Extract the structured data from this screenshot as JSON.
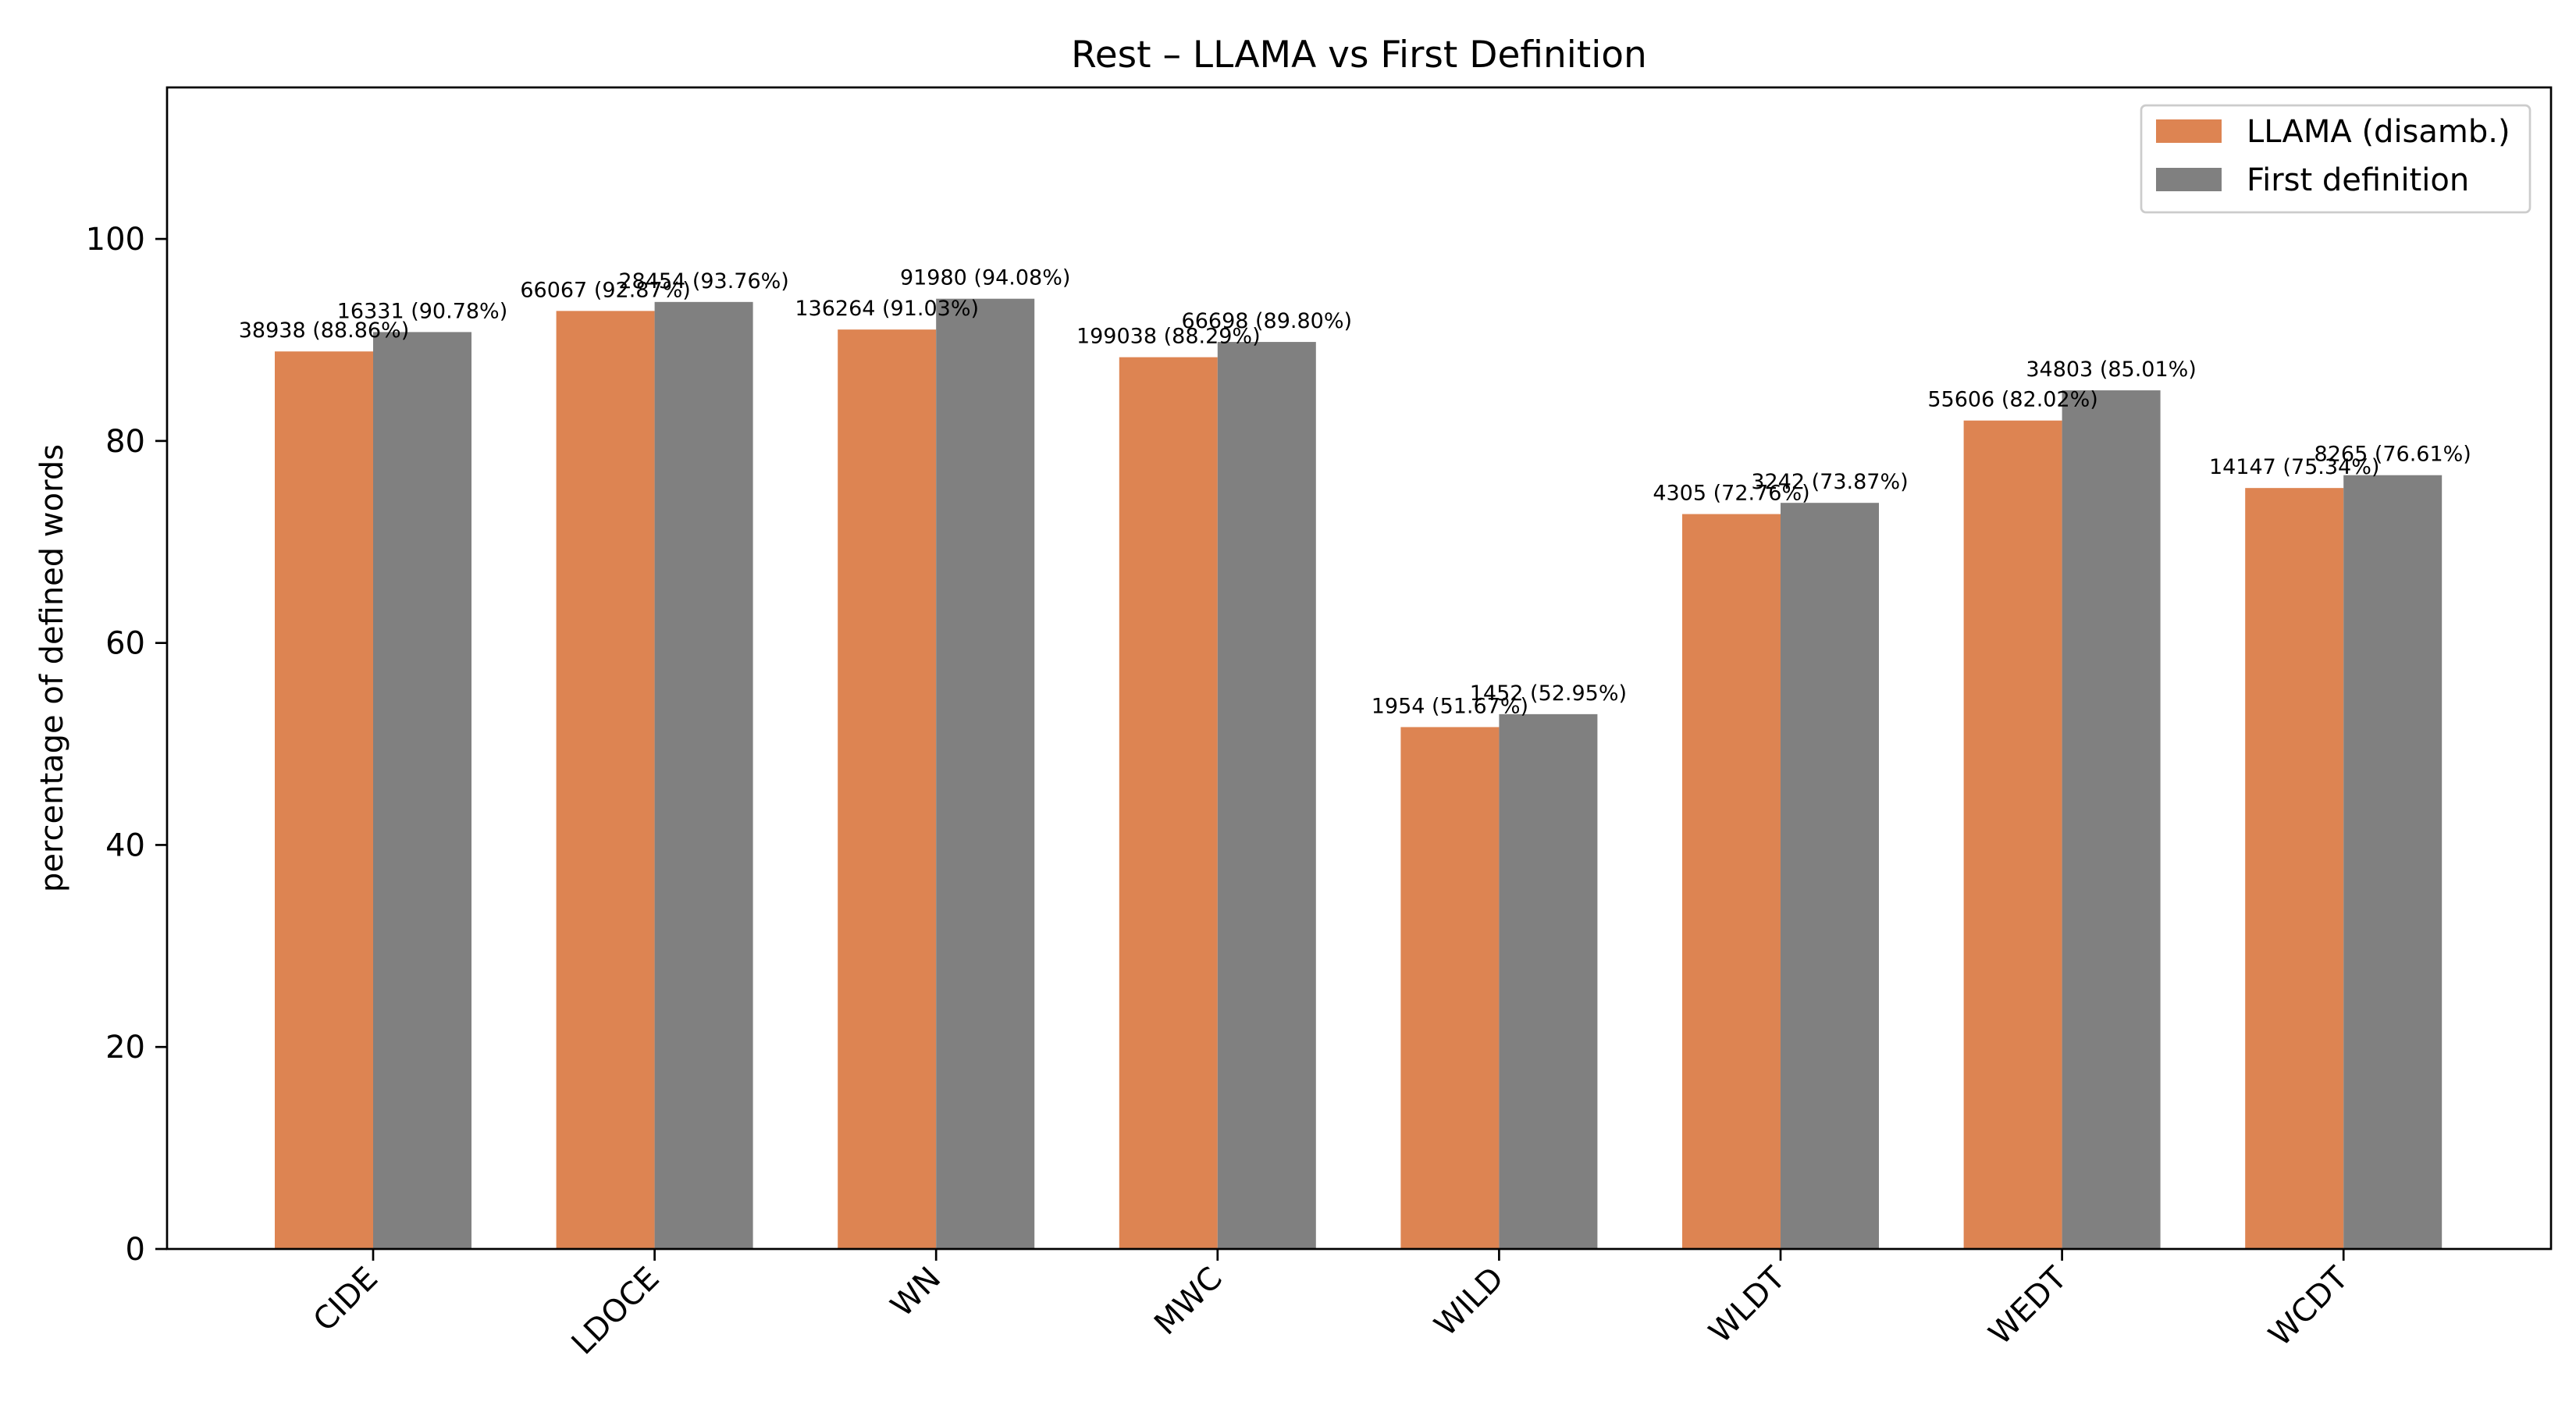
{
  "chart_data": {
    "type": "bar",
    "title": "Rest – LLAMA vs First Definition",
    "xlabel": "",
    "ylabel": "percentage of defined words",
    "ylim": [
      0,
      115
    ],
    "yticks": [
      "0",
      "20",
      "40",
      "60",
      "80",
      "100"
    ],
    "categories": [
      "CIDE",
      "LDOCE",
      "WN",
      "MWC",
      "WILD",
      "WLDT",
      "WEDT",
      "WCDT"
    ],
    "series": [
      {
        "name": "LLAMA (disamb.)",
        "color": "#dd8452",
        "values": [
          88.86,
          92.87,
          91.03,
          88.29,
          51.67,
          72.76,
          82.02,
          75.34
        ],
        "labels": [
          "38938 (88.86%)",
          "66067 (92.87%)",
          "136264 (91.03%)",
          "199038 (88.29%)",
          "1954 (51.67%)",
          "4305 (72.76%)",
          "55606 (82.02%)",
          "14147 (75.34%)"
        ]
      },
      {
        "name": "First definition",
        "color": "#808080",
        "values": [
          90.78,
          93.76,
          94.08,
          89.8,
          52.95,
          73.87,
          85.01,
          76.61
        ],
        "labels": [
          "16331 (90.78%)",
          "28454 (93.76%)",
          "91980 (94.08%)",
          "66698 (89.80%)",
          "1452 (52.95%)",
          "3242 (73.87%)",
          "34803 (85.01%)",
          "8265 (76.61%)"
        ]
      }
    ],
    "legend_position": "top-right",
    "grid": false
  }
}
